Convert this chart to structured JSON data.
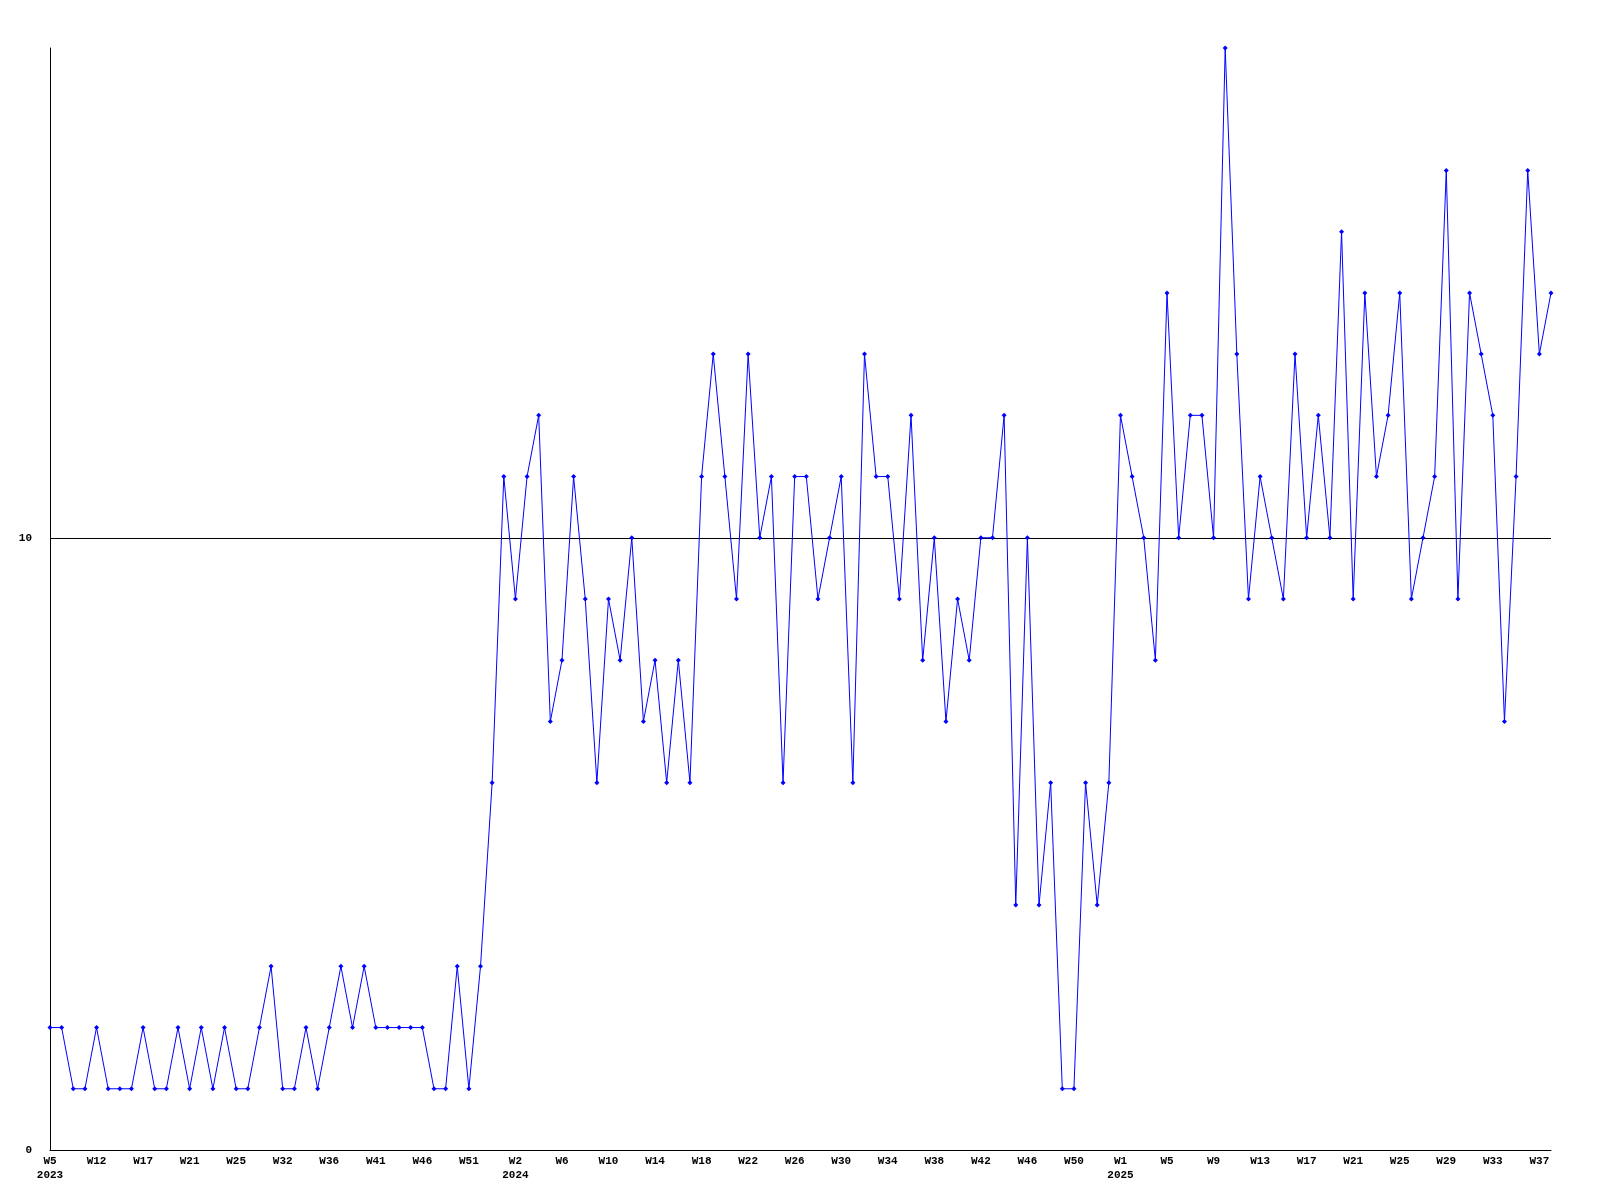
{
  "chart_data": {
    "type": "line",
    "categories": [
      "W5\n2023",
      null,
      null,
      null,
      "W12",
      null,
      null,
      null,
      "W17",
      null,
      null,
      null,
      "W21",
      null,
      null,
      null,
      "W25",
      null,
      null,
      null,
      "W32",
      null,
      null,
      null,
      "W36",
      null,
      null,
      null,
      "W41",
      null,
      null,
      null,
      "W46",
      null,
      null,
      null,
      "W51",
      null,
      null,
      null,
      "W2\n2024",
      null,
      null,
      null,
      "W6",
      null,
      null,
      null,
      "W10",
      null,
      null,
      null,
      "W14",
      null,
      null,
      null,
      "W18",
      null,
      null,
      null,
      "W22",
      null,
      null,
      null,
      "W26",
      null,
      null,
      null,
      "W30",
      null,
      null,
      null,
      "W34",
      null,
      null,
      null,
      "W38",
      null,
      null,
      null,
      "W42",
      null,
      null,
      null,
      "W46",
      null,
      null,
      null,
      "W50",
      null,
      null,
      null,
      "W1\n2025",
      null,
      null,
      null,
      "W5",
      null,
      null,
      null,
      "W9",
      null,
      null,
      null,
      "W13",
      null,
      null,
      null,
      "W17",
      null,
      null,
      null,
      "W21",
      null,
      null,
      null,
      "W25",
      null,
      null,
      null,
      "W29",
      null,
      null,
      null,
      "W33",
      null,
      null,
      null,
      "W37",
      null
    ],
    "series": [
      {
        "color": "#0000ff",
        "values": [
          2,
          2,
          1,
          1,
          2,
          1,
          1,
          1,
          2,
          1,
          1,
          2,
          1,
          2,
          1,
          2,
          1,
          1,
          2,
          3,
          1,
          1,
          2,
          1,
          2,
          3,
          2,
          3,
          2,
          2,
          2,
          2,
          2,
          1,
          1,
          3,
          1,
          3,
          6,
          11,
          9,
          11,
          12,
          7,
          8,
          11,
          9,
          6,
          9,
          8,
          10,
          7,
          8,
          6,
          8,
          6,
          11,
          13,
          11,
          9,
          13,
          10,
          11,
          6,
          11,
          11,
          9,
          10,
          11,
          6,
          13,
          11,
          11,
          9,
          12,
          8,
          10,
          7,
          9,
          8,
          10,
          10,
          12,
          4,
          10,
          4,
          6,
          1,
          1,
          6,
          4,
          6,
          12,
          11,
          10,
          8,
          14,
          10,
          12,
          12,
          10,
          18,
          13,
          9,
          11,
          10,
          9,
          13,
          10,
          12,
          10,
          15,
          9,
          14,
          11,
          12,
          14,
          9,
          10,
          11,
          16,
          9,
          14,
          13,
          12,
          7,
          11,
          16,
          13,
          14
        ]
      }
    ],
    "ylim": [
      0,
      18
    ],
    "yticks": [
      0,
      10
    ],
    "grid": "y",
    "marker": "diamond",
    "line_style": "solid"
  }
}
